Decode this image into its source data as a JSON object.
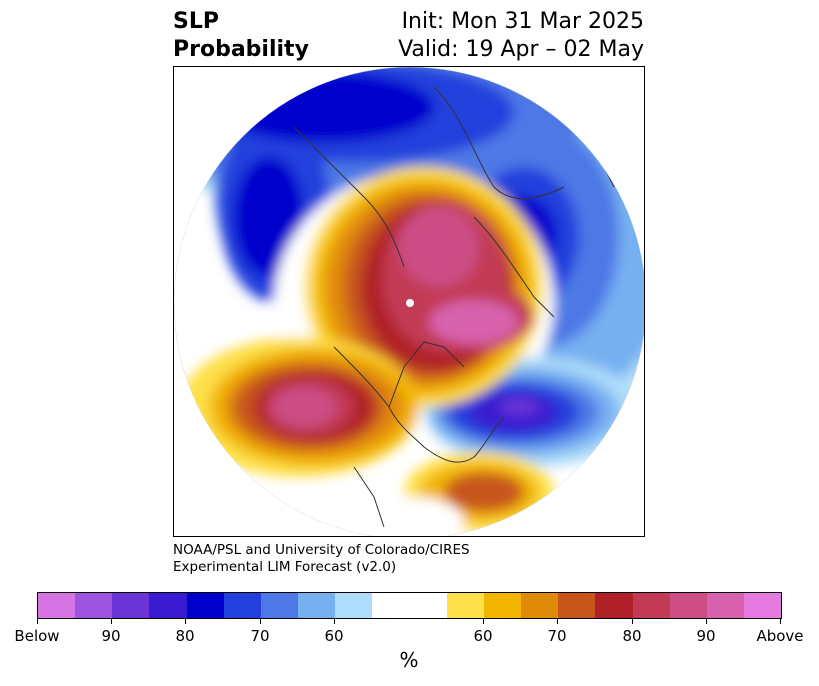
{
  "title": {
    "left_line1": "SLP",
    "left_line2": "Probability",
    "right_line1": "Init: Mon 31 Mar 2025",
    "right_line2": "Valid: 19 Apr – 02 May"
  },
  "credit": {
    "line1": "NOAA/PSL and University of Colorado/CIRES",
    "line2": "Experimental LIM Forecast (v2.0)"
  },
  "colorbar": {
    "colors": [
      "#d774e4",
      "#9d55e0",
      "#6b35d6",
      "#3a1bd1",
      "#0000cc",
      "#2440dc",
      "#4d78e6",
      "#76b0f0",
      "#afdcfa",
      "#ffffff",
      "#ffffff",
      "#fee04a",
      "#f2b500",
      "#e08a0a",
      "#c8561a",
      "#b02028",
      "#c23a55",
      "#cc4e85",
      "#d862ad",
      "#e57ae0"
    ],
    "labels": [
      "Below",
      "90",
      "80",
      "70",
      "60",
      "60",
      "70",
      "80",
      "90",
      "Above"
    ],
    "units": "%"
  }
}
